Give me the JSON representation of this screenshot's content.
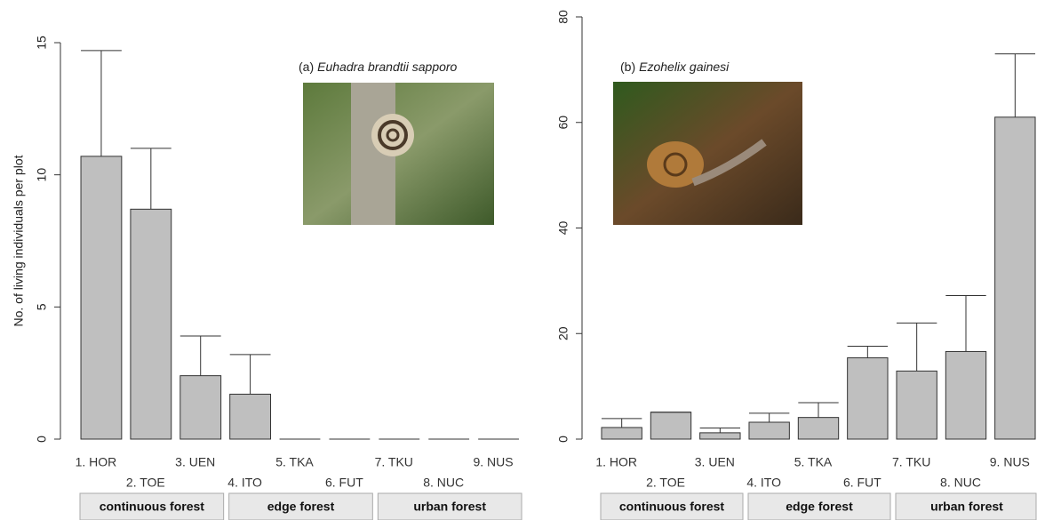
{
  "chart_data": [
    {
      "type": "bar",
      "panel_label": "(a)",
      "species": "Euhadra brandtii sapporo",
      "ylabel": "No. of living individuals per plot",
      "categories": [
        "1. HOR",
        "2. TOE",
        "3. UEN",
        "4. ITO",
        "5. TKA",
        "6. FUT",
        "7. TKU",
        "8. NUC",
        "9. NUS"
      ],
      "values": [
        10.7,
        8.7,
        2.4,
        1.7,
        0,
        0,
        0,
        0,
        0
      ],
      "errors": [
        4.0,
        2.3,
        1.5,
        1.5,
        0,
        0,
        0,
        0,
        0
      ],
      "color": "#bfbfbf",
      "groups": [
        "continuous forest",
        "edge forest",
        "urban forest"
      ],
      "ylim": [
        0,
        15
      ],
      "yticks": [
        0,
        5,
        10,
        15
      ]
    },
    {
      "type": "bar",
      "panel_label": "(b)",
      "species": "Ezohelix gainesi",
      "categories": [
        "1. HOR",
        "2. TOE",
        "3. UEN",
        "4. ITO",
        "5. TKA",
        "6. FUT",
        "7. TKU",
        "8. NUC",
        "9. NUS"
      ],
      "values": [
        2.2,
        5.1,
        1.2,
        3.2,
        4.1,
        15.4,
        12.9,
        16.6,
        61
      ],
      "errors": [
        1.7,
        0,
        0.9,
        1.7,
        2.8,
        2.2,
        9.1,
        10.6,
        12
      ],
      "color": "#bfbfbf",
      "groups": [
        "continuous forest",
        "edge forest",
        "urban forest"
      ],
      "ylim": [
        0,
        80
      ],
      "yticks": [
        0,
        20,
        40,
        60,
        80
      ]
    }
  ]
}
